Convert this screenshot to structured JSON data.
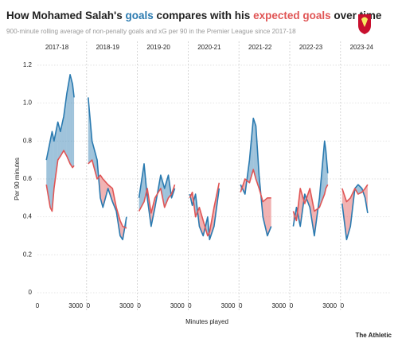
{
  "header": {
    "title": [
      "How Mohamed Salah's ",
      "goals",
      " compares with his ",
      "expected goals",
      " over time"
    ],
    "subtitle": "900-minute rolling average of non-penalty goals and xG per 90 in the Premier League since 2017-18",
    "y_label": "Per 90 minutes",
    "x_label": "Minutes played",
    "brand": "The Athletic"
  },
  "chart_data": [
    {
      "type": "line",
      "title": "2017-18",
      "xlim": [
        0,
        3800
      ],
      "ylim": [
        0,
        1.25
      ],
      "xticks": [
        0,
        3000
      ],
      "yticks": [
        0,
        0.2,
        0.4,
        0.6,
        0.8,
        {
          "value": 1,
          "label": "1.0"
        },
        1.2
      ],
      "grid": true,
      "x": [
        700,
        1000,
        1150,
        1300,
        1600,
        1800,
        2060,
        2300,
        2560,
        2750,
        2870
      ],
      "series": [
        {
          "color": "#2a7ab0",
          "values": [
            0.7,
            0.8,
            0.85,
            0.8,
            0.9,
            0.85,
            0.93,
            1.05,
            1.15,
            1.1,
            1.03
          ]
        },
        {
          "color": "#e05555",
          "values": [
            0.57,
            0.45,
            0.43,
            0.55,
            0.7,
            0.72,
            0.75,
            0.72,
            0.68,
            0.66,
            0.67
          ]
        }
      ]
    },
    {
      "type": "line",
      "title": "2018-19",
      "xlim": [
        0,
        3800
      ],
      "ylim": [
        0,
        1.25
      ],
      "xticks": [
        0,
        3000
      ],
      "x": [
        0,
        300,
        700,
        950,
        1150,
        1550,
        1900,
        2200,
        2500,
        2700,
        3000
      ],
      "series": [
        {
          "color": "#2a7ab0",
          "values": [
            1.03,
            0.8,
            0.7,
            0.5,
            0.45,
            0.55,
            0.48,
            0.43,
            0.3,
            0.28,
            0.4
          ]
        },
        {
          "color": "#e05555",
          "values": [
            0.68,
            0.7,
            0.6,
            0.62,
            0.6,
            0.57,
            0.55,
            0.45,
            0.38,
            0.35,
            0.34
          ]
        }
      ]
    },
    {
      "type": "line",
      "title": "2019-20",
      "xlim": [
        0,
        3800
      ],
      "ylim": [
        0,
        1.25
      ],
      "xticks": [
        0,
        3000
      ],
      "x": [
        0,
        400,
        650,
        950,
        1250,
        1700,
        2000,
        2300,
        2550,
        2800
      ],
      "series": [
        {
          "color": "#2a7ab0",
          "values": [
            0.5,
            0.68,
            0.5,
            0.35,
            0.45,
            0.62,
            0.55,
            0.62,
            0.5,
            0.55
          ]
        },
        {
          "color": "#e05555",
          "values": [
            0.43,
            0.48,
            0.55,
            0.42,
            0.5,
            0.55,
            0.45,
            0.5,
            0.52,
            0.57
          ]
        }
      ]
    },
    {
      "type": "line",
      "title": "2020-21",
      "xlim": [
        0,
        3800
      ],
      "ylim": [
        0,
        1.25
      ],
      "xticks": [
        0,
        3000
      ],
      "x": [
        0,
        200,
        450,
        750,
        1050,
        1400,
        1550,
        1900,
        2300
      ],
      "series": [
        {
          "color": "#2a7ab0",
          "values": [
            0.52,
            0.46,
            0.52,
            0.35,
            0.3,
            0.4,
            0.28,
            0.35,
            0.55
          ]
        },
        {
          "color": "#e05555",
          "values": [
            0.5,
            0.53,
            0.4,
            0.45,
            0.38,
            0.3,
            0.32,
            0.45,
            0.58
          ]
        }
      ]
    },
    {
      "type": "line",
      "title": "2021-22",
      "xlim": [
        0,
        3800
      ],
      "ylim": [
        0,
        1.25
      ],
      "xticks": [
        0,
        3000
      ],
      "x": [
        0,
        350,
        700,
        1000,
        1200,
        1450,
        1750,
        2100,
        2400
      ],
      "series": [
        {
          "color": "#2a7ab0",
          "values": [
            0.57,
            0.52,
            0.7,
            0.92,
            0.88,
            0.62,
            0.4,
            0.3,
            0.35
          ]
        },
        {
          "color": "#e05555",
          "values": [
            0.53,
            0.6,
            0.58,
            0.65,
            0.6,
            0.55,
            0.48,
            0.5,
            0.5
          ]
        }
      ]
    },
    {
      "type": "line",
      "title": "2022-23",
      "xlim": [
        0,
        3800
      ],
      "ylim": [
        0,
        1.25
      ],
      "xticks": [
        0,
        3000
      ],
      "x": [
        150,
        400,
        700,
        1050,
        1450,
        1800,
        2200,
        2600,
        2700,
        2850
      ],
      "series": [
        {
          "color": "#2a7ab0",
          "values": [
            0.35,
            0.45,
            0.35,
            0.52,
            0.45,
            0.3,
            0.5,
            0.8,
            0.75,
            0.63
          ]
        },
        {
          "color": "#e05555",
          "values": [
            0.43,
            0.38,
            0.55,
            0.47,
            0.55,
            0.43,
            0.45,
            0.52,
            0.55,
            0.57
          ]
        }
      ]
    },
    {
      "type": "line",
      "title": "2023-24",
      "xlim": [
        0,
        3800
      ],
      "ylim": [
        0,
        1.25
      ],
      "xticks": [
        0
      ],
      "x": [
        0,
        350,
        650,
        1000,
        1250,
        1550,
        1800,
        2000
      ],
      "series": [
        {
          "color": "#2a7ab0",
          "values": [
            0.47,
            0.28,
            0.35,
            0.55,
            0.57,
            0.55,
            0.5,
            0.42
          ]
        },
        {
          "color": "#e05555",
          "values": [
            0.55,
            0.48,
            0.5,
            0.55,
            0.52,
            0.53,
            0.55,
            0.57
          ]
        }
      ]
    }
  ]
}
